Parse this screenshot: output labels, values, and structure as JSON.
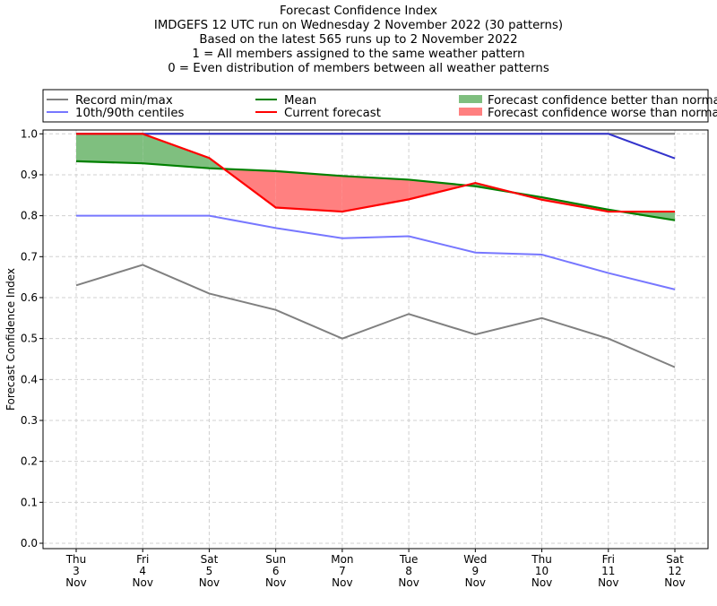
{
  "chart_data": {
    "type": "line",
    "title_lines": [
      "Forecast Confidence Index",
      "IMDGEFS 12 UTC run on Wednesday 2 November 2022 (30 patterns)",
      "Based on the latest 565 runs up to 2 November 2022",
      "1 = All members assigned to the same weather pattern",
      "0 = Even distribution of members between all weather patterns"
    ],
    "ylabel": "Forecast Confidence Index",
    "xlabel": "",
    "ylim": [
      0,
      1
    ],
    "yticks": [
      "0.0",
      "0.1",
      "0.2",
      "0.3",
      "0.4",
      "0.5",
      "0.6",
      "0.7",
      "0.8",
      "0.9",
      "1.0"
    ],
    "categories": [
      [
        "Thu",
        "3",
        "Nov"
      ],
      [
        "Fri",
        "4",
        "Nov"
      ],
      [
        "Sat",
        "5",
        "Nov"
      ],
      [
        "Sun",
        "6",
        "Nov"
      ],
      [
        "Mon",
        "7",
        "Nov"
      ],
      [
        "Tue",
        "8",
        "Nov"
      ],
      [
        "Wed",
        "9",
        "Nov"
      ],
      [
        "Thu",
        "10",
        "Nov"
      ],
      [
        "Fri",
        "11",
        "Nov"
      ],
      [
        "Sat",
        "12",
        "Nov"
      ]
    ],
    "grid": true,
    "legend_placement": "top (above plot)",
    "series": [
      {
        "name": "Record min/max",
        "key": "record_min",
        "color": "#808080",
        "values": [
          0.63,
          0.68,
          0.61,
          0.57,
          0.5,
          0.56,
          0.51,
          0.55,
          0.5,
          0.43
        ]
      },
      {
        "name": "",
        "key": "record_max",
        "color": "#808080",
        "values": [
          1.0,
          1.0,
          1.0,
          1.0,
          1.0,
          1.0,
          1.0,
          1.0,
          1.0,
          1.0
        ]
      },
      {
        "name": "10th/90th centiles",
        "key": "p10",
        "color": "#7777ff",
        "values": [
          0.8,
          0.8,
          0.8,
          0.77,
          0.745,
          0.75,
          0.71,
          0.705,
          0.66,
          0.62
        ]
      },
      {
        "name": "",
        "key": "p90",
        "color": "#3333cc",
        "values": [
          1.0,
          1.0,
          1.0,
          1.0,
          1.0,
          1.0,
          1.0,
          1.0,
          1.0,
          0.94
        ]
      },
      {
        "name": "Mean",
        "key": "mean",
        "color": "#008000",
        "values": [
          0.933,
          0.928,
          0.916,
          0.909,
          0.897,
          0.888,
          0.872,
          0.845,
          0.815,
          0.789
        ]
      },
      {
        "name": "Current forecast",
        "key": "current",
        "color": "#ff0000",
        "values": [
          1.0,
          1.0,
          0.941,
          0.82,
          0.81,
          0.84,
          0.88,
          0.839,
          0.81,
          0.81
        ]
      }
    ],
    "fills": [
      {
        "name": "Forecast confidence better than normal",
        "color": "#7fbf7f"
      },
      {
        "name": "Forecast confidence worse than normal",
        "color": "#ff8080"
      }
    ]
  }
}
